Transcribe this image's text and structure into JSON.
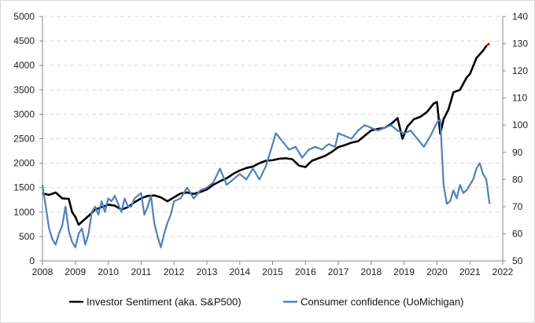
{
  "chart_data": {
    "type": "line",
    "title": "",
    "xlabel": "",
    "ylabel_left": "",
    "ylabel_right": "",
    "x_ticks": [
      "2008",
      "2009",
      "2010",
      "2011",
      "2012",
      "2013",
      "2014",
      "2015",
      "2016",
      "2017",
      "2018",
      "2019",
      "2020",
      "2021",
      "2022"
    ],
    "xlim": [
      2008,
      2022
    ],
    "y_left_ticks": [
      "0",
      "500",
      "1000",
      "1500",
      "2000",
      "2500",
      "3000",
      "3500",
      "4000",
      "4500",
      "5000"
    ],
    "ylim_left": [
      0,
      5000
    ],
    "y_right_ticks": [
      "50",
      "60",
      "70",
      "80",
      "90",
      "100",
      "110",
      "120",
      "130",
      "140"
    ],
    "ylim_right": [
      50,
      140
    ],
    "grid": "horizontal dashed",
    "legend_position": "bottom",
    "series": [
      {
        "name": "Investor Sentiment (aka. S&P500)",
        "axis": "left",
        "color": "#000000",
        "last_segment_color": "#e00000",
        "x": [
          2008.0,
          2008.2,
          2008.4,
          2008.6,
          2008.8,
          2008.9,
          2009.0,
          2009.1,
          2009.2,
          2009.4,
          2009.6,
          2009.8,
          2010.0,
          2010.2,
          2010.4,
          2010.6,
          2010.8,
          2011.0,
          2011.2,
          2011.4,
          2011.6,
          2011.8,
          2012.0,
          2012.2,
          2012.4,
          2012.6,
          2012.8,
          2013.0,
          2013.2,
          2013.4,
          2013.6,
          2013.8,
          2014.0,
          2014.2,
          2014.4,
          2014.6,
          2014.8,
          2015.0,
          2015.2,
          2015.4,
          2015.6,
          2015.8,
          2016.0,
          2016.2,
          2016.4,
          2016.6,
          2016.8,
          2017.0,
          2017.2,
          2017.4,
          2017.6,
          2017.8,
          2018.0,
          2018.2,
          2018.4,
          2018.6,
          2018.8,
          2018.95,
          2019.1,
          2019.3,
          2019.5,
          2019.7,
          2019.9,
          2020.0,
          2020.1,
          2020.2,
          2020.35,
          2020.5,
          2020.7,
          2020.9,
          2021.0,
          2021.2,
          2021.4,
          2021.5,
          2021.6
        ],
        "values": [
          1380,
          1350,
          1400,
          1280,
          1270,
          1000,
          900,
          740,
          800,
          920,
          1050,
          1100,
          1150,
          1130,
          1050,
          1100,
          1200,
          1280,
          1330,
          1340,
          1300,
          1220,
          1300,
          1380,
          1400,
          1370,
          1410,
          1460,
          1560,
          1630,
          1690,
          1780,
          1850,
          1900,
          1930,
          2000,
          2050,
          2060,
          2090,
          2100,
          2080,
          1950,
          1920,
          2050,
          2100,
          2150,
          2230,
          2330,
          2370,
          2420,
          2450,
          2560,
          2670,
          2700,
          2720,
          2800,
          2920,
          2500,
          2750,
          2900,
          2950,
          3050,
          3220,
          3250,
          2600,
          2900,
          3100,
          3450,
          3500,
          3750,
          3820,
          4150,
          4300,
          4400,
          4450
        ]
      },
      {
        "name": "Consumer confidence (UoMichigan)",
        "axis": "right",
        "color": "#4f81bd",
        "x": [
          2008.0,
          2008.1,
          2008.2,
          2008.3,
          2008.4,
          2008.5,
          2008.6,
          2008.7,
          2008.8,
          2008.9,
          2009.0,
          2009.1,
          2009.2,
          2009.3,
          2009.4,
          2009.5,
          2009.6,
          2009.7,
          2009.8,
          2009.9,
          2010.0,
          2010.1,
          2010.2,
          2010.3,
          2010.4,
          2010.5,
          2010.6,
          2010.7,
          2010.8,
          2010.9,
          2011.0,
          2011.1,
          2011.2,
          2011.3,
          2011.4,
          2011.5,
          2011.6,
          2011.7,
          2011.8,
          2011.9,
          2012.0,
          2012.2,
          2012.4,
          2012.6,
          2012.8,
          2013.0,
          2013.2,
          2013.4,
          2013.6,
          2013.8,
          2014.0,
          2014.2,
          2014.4,
          2014.6,
          2014.8,
          2015.0,
          2015.1,
          2015.3,
          2015.5,
          2015.7,
          2015.9,
          2016.1,
          2016.3,
          2016.5,
          2016.7,
          2016.9,
          2017.0,
          2017.2,
          2017.4,
          2017.6,
          2017.8,
          2018.0,
          2018.2,
          2018.4,
          2018.6,
          2018.8,
          2019.0,
          2019.2,
          2019.4,
          2019.6,
          2019.8,
          2020.0,
          2020.1,
          2020.2,
          2020.3,
          2020.4,
          2020.5,
          2020.6,
          2020.7,
          2020.8,
          2020.9,
          2021.0,
          2021.1,
          2021.2,
          2021.3,
          2021.4,
          2021.5,
          2021.6
        ],
        "values": [
          78,
          70,
          62,
          58,
          56,
          60,
          63,
          70,
          61,
          57,
          55,
          60,
          62,
          56,
          60,
          68,
          70,
          67,
          72,
          68,
          73,
          72,
          74,
          71,
          68,
          73,
          70,
          70,
          73,
          74,
          75,
          67,
          70,
          74,
          64,
          59,
          55,
          60,
          64,
          67,
          72,
          73,
          77,
          73,
          76,
          77,
          79,
          84,
          78,
          80,
          82,
          80,
          84,
          80,
          85,
          93,
          97,
          94,
          91,
          92,
          88,
          91,
          92,
          91,
          93,
          92,
          97,
          96,
          95,
          98,
          100,
          99,
          98,
          99,
          100,
          98,
          97,
          98,
          95,
          92,
          96,
          101,
          102,
          78,
          71,
          72,
          76,
          73,
          78,
          75,
          76,
          78,
          80,
          84,
          86,
          82,
          80,
          71
        ]
      }
    ]
  }
}
